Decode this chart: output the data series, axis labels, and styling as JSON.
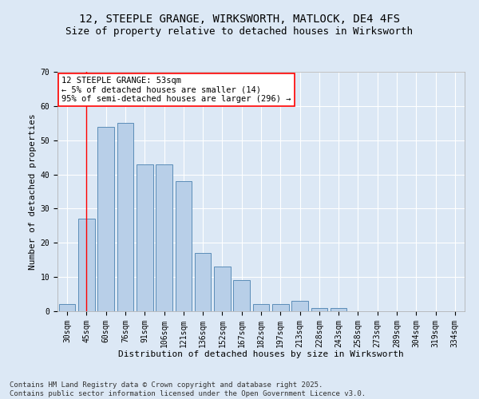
{
  "title_line1": "12, STEEPLE GRANGE, WIRKSWORTH, MATLOCK, DE4 4FS",
  "title_line2": "Size of property relative to detached houses in Wirksworth",
  "xlabel": "Distribution of detached houses by size in Wirksworth",
  "ylabel": "Number of detached properties",
  "categories": [
    "30sqm",
    "45sqm",
    "60sqm",
    "76sqm",
    "91sqm",
    "106sqm",
    "121sqm",
    "136sqm",
    "152sqm",
    "167sqm",
    "182sqm",
    "197sqm",
    "213sqm",
    "228sqm",
    "243sqm",
    "258sqm",
    "273sqm",
    "289sqm",
    "304sqm",
    "319sqm",
    "334sqm"
  ],
  "values": [
    2,
    27,
    54,
    55,
    43,
    43,
    38,
    17,
    13,
    9,
    2,
    2,
    3,
    1,
    1,
    0,
    0,
    0,
    0,
    0,
    0
  ],
  "bar_color": "#b8cfe8",
  "bar_edge_color": "#5b8db8",
  "fig_bg_color": "#dce8f5",
  "ax_bg_color": "#dce8f5",
  "grid_color": "#ffffff",
  "annotation_box_text": "12 STEEPLE GRANGE: 53sqm\n← 5% of detached houses are smaller (14)\n95% of semi-detached houses are larger (296) →",
  "redline_x": 1.0,
  "ylim": [
    0,
    70
  ],
  "yticks": [
    0,
    10,
    20,
    30,
    40,
    50,
    60,
    70
  ],
  "footer_line1": "Contains HM Land Registry data © Crown copyright and database right 2025.",
  "footer_line2": "Contains public sector information licensed under the Open Government Licence v3.0.",
  "title_fontsize": 10,
  "subtitle_fontsize": 9,
  "axis_label_fontsize": 8,
  "tick_fontsize": 7,
  "annotation_fontsize": 7.5,
  "footer_fontsize": 6.5
}
